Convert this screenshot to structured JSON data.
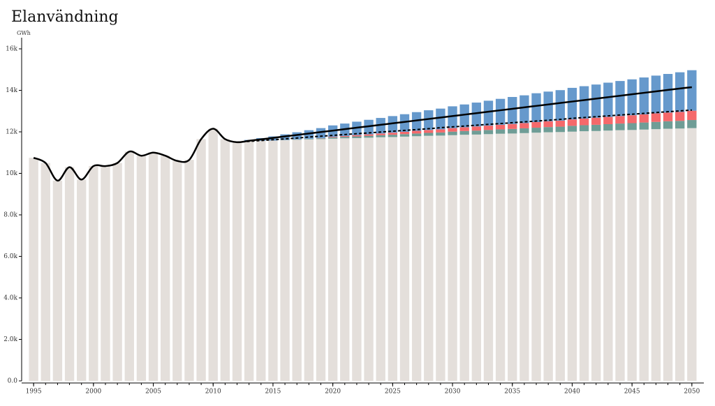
{
  "chart_data": {
    "type": "stacked-bar-line",
    "title": "Elanvändning",
    "y_label": "GWh",
    "x": [
      1995,
      1996,
      1997,
      1998,
      1999,
      2000,
      2001,
      2002,
      2003,
      2004,
      2005,
      2006,
      2007,
      2008,
      2009,
      2010,
      2011,
      2012,
      2013,
      2014,
      2015,
      2016,
      2017,
      2018,
      2019,
      2020,
      2021,
      2022,
      2023,
      2024,
      2025,
      2026,
      2027,
      2028,
      2029,
      2030,
      2031,
      2032,
      2033,
      2034,
      2035,
      2036,
      2037,
      2038,
      2039,
      2040,
      2041,
      2042,
      2043,
      2044,
      2045,
      2046,
      2047,
      2048,
      2049,
      2050
    ],
    "xlim": [
      1994,
      2051
    ],
    "xticks": [
      1995,
      2000,
      2005,
      2010,
      2015,
      2020,
      2025,
      2030,
      2035,
      2040,
      2045,
      2050
    ],
    "ylim": [
      0,
      16000
    ],
    "yticks": [
      {
        "value": 0,
        "label": "0.0"
      },
      {
        "value": 2000,
        "label": "2.0k"
      },
      {
        "value": 4000,
        "label": "4.0k"
      },
      {
        "value": 6000,
        "label": "6.0k"
      },
      {
        "value": 8000,
        "label": "8.0k"
      },
      {
        "value": 10000,
        "label": "10k"
      },
      {
        "value": 12000,
        "label": "12k"
      },
      {
        "value": 14000,
        "label": "14k"
      },
      {
        "value": 16000,
        "label": "16k"
      }
    ],
    "series": [
      {
        "kind": "bar",
        "color": "#e4dfdb",
        "values": [
          10750,
          10500,
          9650,
          10300,
          9700,
          10350,
          10350,
          10500,
          11050,
          10850,
          11000,
          10850,
          10600,
          10650,
          11650,
          12150,
          11650,
          11500,
          11550,
          11570,
          11580,
          11600,
          11620,
          11640,
          11650,
          11670,
          11690,
          11700,
          11720,
          11740,
          11750,
          11770,
          11790,
          11810,
          11820,
          11840,
          11860,
          11870,
          11890,
          11910,
          11920,
          11940,
          11960,
          11980,
          11990,
          12010,
          12030,
          12040,
          12060,
          12080,
          12090,
          12110,
          12130,
          12150,
          12160,
          12180
        ]
      },
      {
        "kind": "bar",
        "color": "#6f9d96",
        "values": [
          null,
          null,
          null,
          null,
          null,
          null,
          null,
          null,
          null,
          null,
          null,
          null,
          null,
          null,
          null,
          null,
          null,
          null,
          null,
          null,
          null,
          10,
          20,
          30,
          40,
          60,
          70,
          80,
          90,
          100,
          110,
          120,
          130,
          140,
          150,
          170,
          180,
          190,
          200,
          210,
          220,
          230,
          240,
          250,
          260,
          280,
          290,
          300,
          310,
          320,
          330,
          340,
          350,
          360,
          370,
          390
        ]
      },
      {
        "kind": "bar",
        "color": "#f5696b",
        "values": [
          null,
          null,
          null,
          null,
          null,
          null,
          null,
          null,
          null,
          null,
          null,
          null,
          null,
          null,
          null,
          null,
          null,
          null,
          null,
          null,
          null,
          null,
          null,
          null,
          10,
          30,
          40,
          60,
          70,
          80,
          100,
          110,
          130,
          140,
          150,
          170,
          180,
          200,
          210,
          220,
          240,
          250,
          270,
          280,
          290,
          310,
          320,
          340,
          350,
          360,
          380,
          390,
          410,
          420,
          430,
          450
        ]
      },
      {
        "kind": "bar",
        "color": "#6699cc",
        "values": [
          null,
          null,
          null,
          null,
          null,
          null,
          null,
          null,
          null,
          null,
          null,
          null,
          null,
          null,
          null,
          null,
          null,
          null,
          60,
          130,
          200,
          270,
          340,
          410,
          480,
          550,
          600,
          650,
          700,
          750,
          800,
          850,
          900,
          950,
          1000,
          1050,
          1100,
          1150,
          1200,
          1250,
          1300,
          1340,
          1390,
          1430,
          1470,
          1520,
          1560,
          1600,
          1650,
          1690,
          1730,
          1780,
          1820,
          1860,
          1910,
          1950
        ]
      },
      {
        "kind": "line",
        "color": "#000000",
        "dashed": false,
        "values": [
          10750,
          10500,
          9650,
          10300,
          9700,
          10350,
          10350,
          10500,
          11050,
          10850,
          11000,
          10850,
          10600,
          10650,
          11650,
          12150,
          11650,
          11500,
          11570,
          11640,
          11710,
          11780,
          11850,
          11920,
          11990,
          12060,
          12130,
          12200,
          12270,
          12340,
          12410,
          12480,
          12550,
          12620,
          12690,
          12760,
          12830,
          12900,
          12970,
          13040,
          13110,
          13180,
          13250,
          13320,
          13390,
          13460,
          13530,
          13600,
          13670,
          13740,
          13810,
          13880,
          13950,
          14020,
          14090,
          14150
        ]
      },
      {
        "kind": "line",
        "color": "#000000",
        "dashed": true,
        "values": [
          null,
          null,
          null,
          null,
          null,
          null,
          null,
          null,
          null,
          null,
          null,
          null,
          null,
          null,
          null,
          null,
          null,
          11500,
          11540,
          11580,
          11620,
          11660,
          11700,
          11750,
          11790,
          11830,
          11870,
          11910,
          11950,
          11990,
          12030,
          12070,
          12110,
          12150,
          12200,
          12240,
          12280,
          12320,
          12360,
          12400,
          12440,
          12480,
          12520,
          12560,
          12600,
          12650,
          12690,
          12730,
          12770,
          12810,
          12850,
          12890,
          12930,
          12970,
          13010,
          13050
        ]
      }
    ]
  }
}
